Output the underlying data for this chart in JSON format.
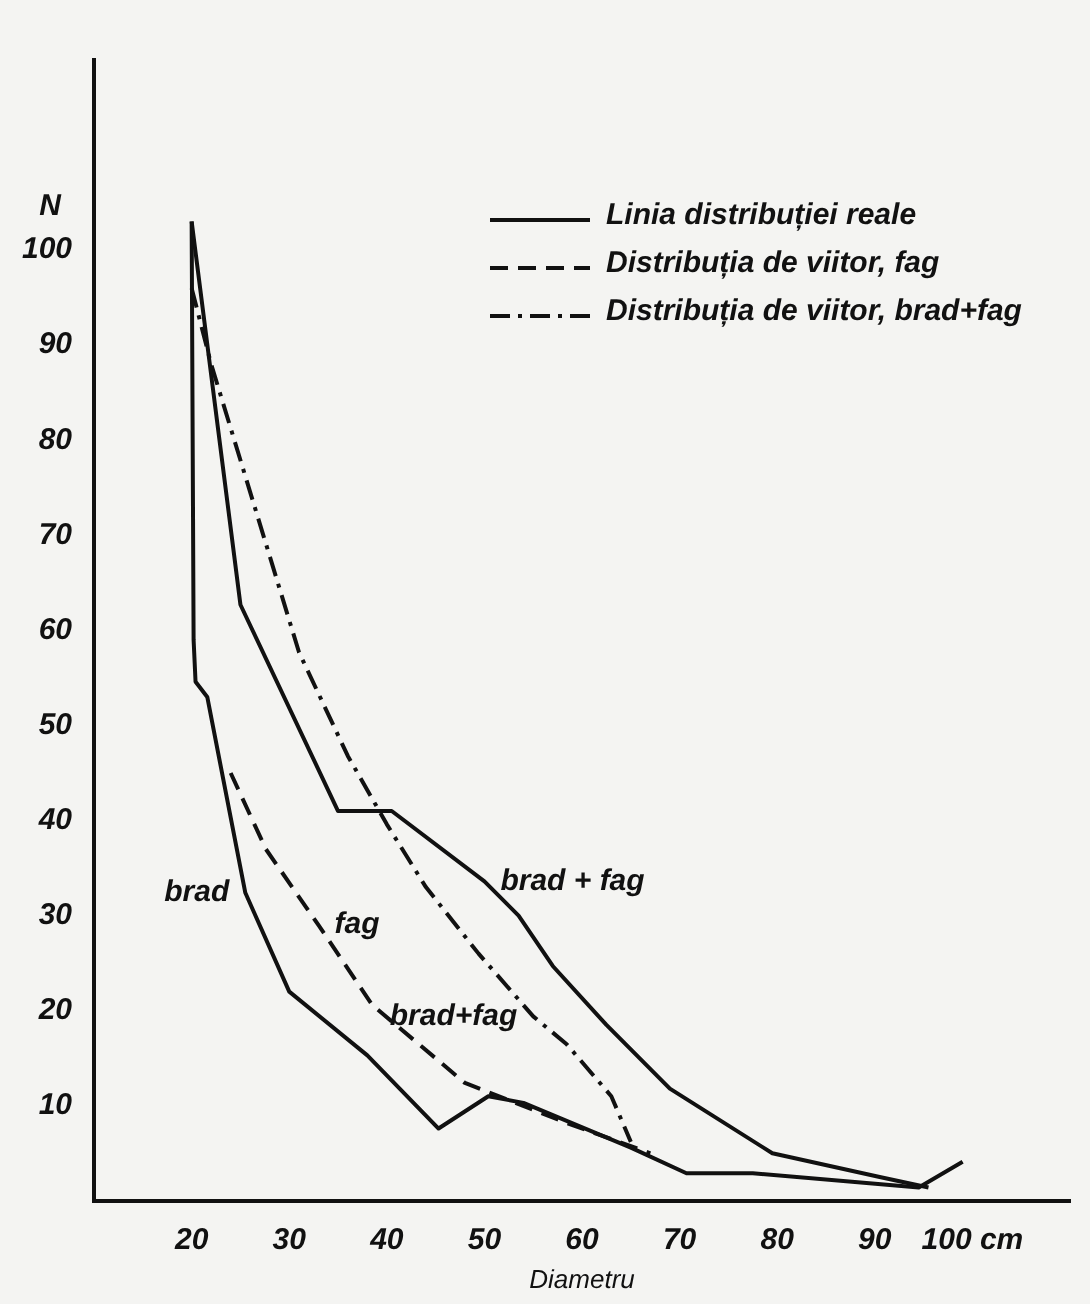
{
  "chart_data": {
    "type": "line",
    "xlabel": "Diametru",
    "ylabel": "N",
    "xlim": [
      10,
      110
    ],
    "ylim": [
      0,
      120
    ],
    "xticks": [
      20,
      30,
      40,
      50,
      60,
      70,
      80,
      90,
      {
        "value": 100,
        "label": "100 cm"
      }
    ],
    "yticks": [
      10,
      20,
      30,
      40,
      50,
      60,
      70,
      80,
      90,
      100
    ],
    "grid": false,
    "legend": "top right",
    "marker": "none",
    "series": [
      {
        "name": "Linia distribuției reale",
        "color": "#111111",
        "line_style": "solid",
        "x": [
          20,
          20.2,
          20.4,
          21.6,
          25.5,
          30,
          38,
          45.3,
          50.4,
          54,
          65,
          70.7,
          77.5,
          94.5,
          99
        ],
        "values": [
          103,
          59,
          54.6,
          53,
          32.4,
          22,
          15.3,
          7.6,
          11,
          10.3,
          5.6,
          2.9,
          2.9,
          1.4,
          4.1
        ]
      },
      {
        "color": "#111111",
        "line_style": "solid",
        "x": [
          20,
          25,
          35,
          40.5,
          50,
          53.5,
          57,
          62.5,
          69,
          79.5,
          90.5,
          95.5
        ],
        "values": [
          103,
          62.7,
          41,
          41,
          33.6,
          30,
          24.7,
          18.5,
          11.8,
          5,
          2.5,
          1.4
        ]
      },
      {
        "name": "Distribuția de viitor, fag",
        "color": "#111111",
        "line_style": "dashed",
        "x": [
          24,
          27.6,
          33,
          38.5,
          48,
          58.4,
          67
        ],
        "values": [
          45,
          37,
          29,
          20.6,
          12.4,
          8.2,
          5
        ]
      },
      {
        "name": "Distribuția de viitor, brad+fag",
        "color": "#111111",
        "line_style": "dashdot",
        "x": [
          20,
          22,
          31,
          36,
          40,
          44,
          49.4,
          55,
          58.4,
          63,
          65
        ],
        "values": [
          96,
          88,
          57.7,
          46.8,
          39.6,
          33,
          26,
          19.4,
          16.5,
          11,
          6.2
        ]
      }
    ],
    "annotations": [
      {
        "text": "brad",
        "x": 25.5,
        "y": 32.4
      },
      {
        "text": "fag",
        "x": 33,
        "y": 29
      },
      {
        "text": "brad + fag",
        "x": 50,
        "y": 33.6
      },
      {
        "text": "brad+fag",
        "x": 55,
        "y": 19.4
      }
    ]
  }
}
